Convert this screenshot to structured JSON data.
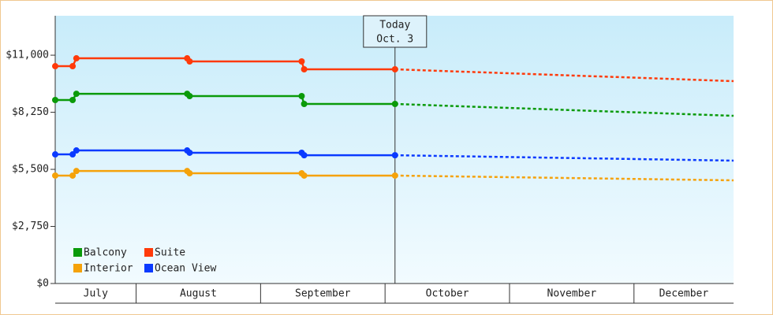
{
  "chart_data": {
    "type": "line",
    "x": [
      7.35,
      7.49,
      7.52,
      8.41,
      8.43,
      9.33,
      9.35,
      10.08,
      12.8
    ],
    "xlim": [
      7.35,
      12.8
    ],
    "xticks": [
      {
        "value": 7,
        "label": "July"
      },
      {
        "value": 8,
        "label": "August"
      },
      {
        "value": 9,
        "label": "September"
      },
      {
        "value": 10,
        "label": "October"
      },
      {
        "value": 11,
        "label": "November"
      },
      {
        "value": 12,
        "label": "December"
      }
    ],
    "ylim": [
      0,
      12900
    ],
    "yticks": [
      {
        "value": 0,
        "label": "$0"
      },
      {
        "value": 2750,
        "label": "$2,750"
      },
      {
        "value": 5500,
        "label": "$5,500"
      },
      {
        "value": 8250,
        "label": "$8,250"
      },
      {
        "value": 11000,
        "label": "$11,000"
      }
    ],
    "annotation": {
      "x": 10.08,
      "lines": [
        "Today",
        "Oct. 3"
      ]
    },
    "legend": "lower left",
    "series": [
      {
        "name": "Balcony",
        "color": "#0a9a0a",
        "values": [
          8840,
          8840,
          9140,
          9140,
          9030,
          9030,
          8650,
          8650,
          null
        ],
        "forecast": [
          null,
          null,
          null,
          null,
          null,
          null,
          null,
          8650,
          8080
        ]
      },
      {
        "name": "Suite",
        "color": "#ff3a0a",
        "values": [
          10470,
          10470,
          10850,
          10850,
          10700,
          10700,
          10320,
          10320,
          null
        ],
        "forecast": [
          null,
          null,
          null,
          null,
          null,
          null,
          null,
          10320,
          9750
        ]
      },
      {
        "name": "Interior",
        "color": "#f5a20a",
        "values": [
          5200,
          5200,
          5420,
          5420,
          5310,
          5310,
          5200,
          5200,
          null
        ],
        "forecast": [
          null,
          null,
          null,
          null,
          null,
          null,
          null,
          5200,
          4970
        ]
      },
      {
        "name": "Ocean View",
        "color": "#0a3aff",
        "values": [
          6220,
          6220,
          6410,
          6410,
          6300,
          6300,
          6180,
          6180,
          null
        ],
        "forecast": [
          null,
          null,
          null,
          null,
          null,
          null,
          null,
          6180,
          5920
        ]
      }
    ]
  }
}
